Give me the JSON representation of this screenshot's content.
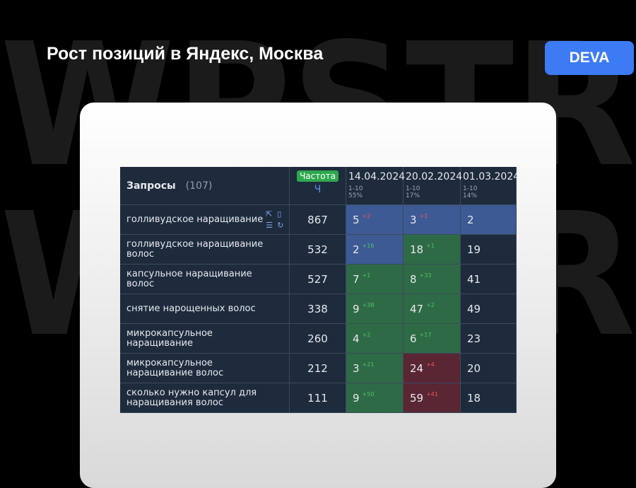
{
  "header": {
    "title": "Рост позиций в Яндекс, Москва",
    "badge": "DEVA"
  },
  "watermark": [
    "WPSTR",
    "WPSTR"
  ],
  "table": {
    "query_header": "Запросы",
    "query_count": "(107)",
    "frequency_badge": "Частота",
    "frequency_type": "Ч",
    "columns": [
      {
        "date": "14.04.2024",
        "range": "1-10",
        "share": "55%"
      },
      {
        "date": "20.02.2024",
        "range": "1-10",
        "share": "17%"
      },
      {
        "date": "01.03.2024",
        "range": "1-10",
        "share": "14%"
      }
    ],
    "rows": [
      {
        "query": "голливудское наращивание",
        "frequency": 867,
        "positions": [
          {
            "value": 5,
            "change": "+2",
            "color": "#3e5a94",
            "change_color": "#f0505a"
          },
          {
            "value": 3,
            "change": "+1",
            "color": "#3e5a94",
            "change_color": "#f0505a"
          },
          {
            "value": 2,
            "color": "#3e5a94"
          }
        ]
      },
      {
        "query": "голливудское наращивание волос",
        "frequency": 532,
        "positions": [
          {
            "value": 2,
            "change": "+16",
            "color": "#3e5a94",
            "change_color": "#4cc46a"
          },
          {
            "value": 18,
            "change": "+1",
            "color": "#2e6a45",
            "change_color": "#4cc46a"
          },
          {
            "value": 19
          }
        ]
      },
      {
        "query": "капсульное наращивание волос",
        "frequency": 527,
        "positions": [
          {
            "value": 7,
            "change": "+1",
            "color": "#2e6a45",
            "change_color": "#4cc46a"
          },
          {
            "value": 8,
            "change": "+33",
            "color": "#2e6a45",
            "change_color": "#4cc46a"
          },
          {
            "value": 41
          }
        ]
      },
      {
        "query": "снятие нарощенных волос",
        "frequency": 338,
        "positions": [
          {
            "value": 9,
            "change": "+38",
            "color": "#2e6a45",
            "change_color": "#4cc46a"
          },
          {
            "value": 47,
            "change": "+2",
            "color": "#2e6a45",
            "change_color": "#4cc46a"
          },
          {
            "value": 49
          }
        ]
      },
      {
        "query": "микрокапсульное наращивание",
        "frequency": 260,
        "positions": [
          {
            "value": 4,
            "change": "+2",
            "color": "#2e6a45",
            "change_color": "#4cc46a"
          },
          {
            "value": 6,
            "change": "+17",
            "color": "#2e6a45",
            "change_color": "#4cc46a"
          },
          {
            "value": 23
          }
        ]
      },
      {
        "query": "микрокапсульное наращивание волос",
        "frequency": 212,
        "positions": [
          {
            "value": 3,
            "change": "+21",
            "color": "#2e6a45",
            "change_color": "#4cc46a"
          },
          {
            "value": 24,
            "change": "+4",
            "color": "#5a2634",
            "change_color": "#f0505a"
          },
          {
            "value": 20
          }
        ]
      },
      {
        "query": "сколько нужно капсул для наращивания волос",
        "frequency": 111,
        "positions": [
          {
            "value": 9,
            "change": "+50",
            "color": "#2e6a45",
            "change_color": "#4cc46a"
          },
          {
            "value": 59,
            "change": "+41",
            "color": "#5a2634",
            "change_color": "#f0505a"
          },
          {
            "value": 18
          }
        ]
      }
    ]
  }
}
